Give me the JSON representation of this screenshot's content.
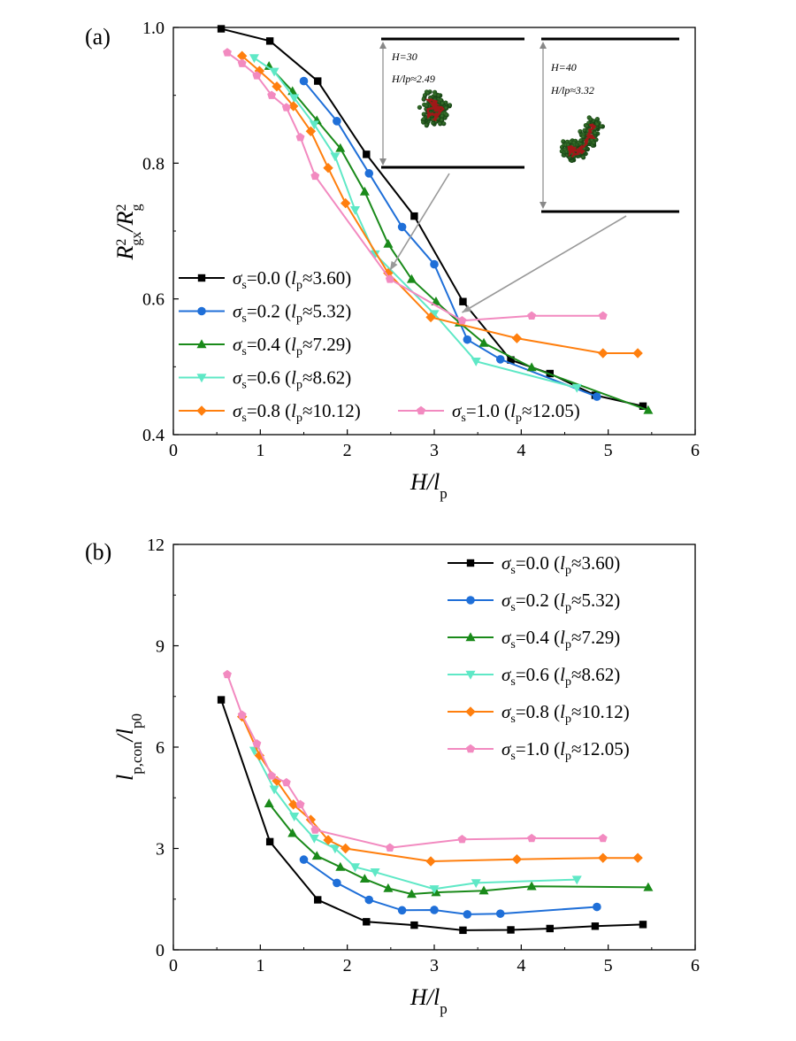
{
  "chart_data": [
    {
      "panel": "(a)",
      "type": "line",
      "xlabel": "H/lp",
      "ylabel": "R2gx/R2g",
      "xlim": [
        0,
        6
      ],
      "ylim": [
        0.4,
        1.0
      ],
      "xticks": [
        "0",
        "1",
        "2",
        "3",
        "4",
        "5",
        "6"
      ],
      "yticks": [
        "0.4",
        "0.6",
        "0.8",
        "1.0"
      ],
      "legend_position": "bottom-left",
      "series": [
        {
          "name": "σs=0.0 (lp≈3.60)",
          "sigma": "0.0",
          "lp": "3.60",
          "color": "#000000",
          "marker": "square",
          "x": [
            0.55,
            1.11,
            1.66,
            2.22,
            2.77,
            3.33,
            3.88,
            4.33,
            4.85,
            5.4
          ],
          "y": [
            0.998,
            0.98,
            0.921,
            0.813,
            0.722,
            0.596,
            0.51,
            0.49,
            0.458,
            0.442
          ]
        },
        {
          "name": "σs=0.2 (lp≈5.32)",
          "sigma": "0.2",
          "lp": "5.32",
          "color": "#1f6fd8",
          "marker": "circle",
          "x": [
            1.5,
            1.88,
            2.25,
            2.63,
            3.0,
            3.38,
            3.76,
            4.87
          ],
          "y": [
            0.921,
            0.862,
            0.785,
            0.706,
            0.651,
            0.54,
            0.511,
            0.456
          ]
        },
        {
          "name": "σs=0.4 (lp≈7.29)",
          "sigma": "0.4",
          "lp": "7.29",
          "color": "#1a8a1a",
          "marker": "triangle-up",
          "x": [
            1.1,
            1.37,
            1.65,
            1.92,
            2.2,
            2.47,
            2.74,
            3.02,
            3.29,
            3.57,
            4.12,
            5.46
          ],
          "y": [
            0.943,
            0.906,
            0.863,
            0.822,
            0.758,
            0.681,
            0.629,
            0.596,
            0.565,
            0.535,
            0.499,
            0.436
          ]
        },
        {
          "name": "σs=0.6 (lp≈8.62)",
          "sigma": "0.6",
          "lp": "8.62",
          "color": "#5fe8c6",
          "marker": "triangle-down",
          "x": [
            0.93,
            1.16,
            1.39,
            1.62,
            1.86,
            2.09,
            2.32,
            3.0,
            3.48,
            4.64
          ],
          "y": [
            0.955,
            0.935,
            0.896,
            0.857,
            0.81,
            0.731,
            0.666,
            0.578,
            0.508,
            0.469
          ]
        },
        {
          "name": "σs=0.8 (lp≈10.12)",
          "sigma": "0.8",
          "lp": "10.12",
          "color": "#ff7f0e",
          "marker": "diamond",
          "x": [
            0.79,
            0.99,
            1.19,
            1.38,
            1.58,
            1.78,
            1.98,
            2.47,
            2.96,
            3.95,
            4.94,
            5.34
          ],
          "y": [
            0.958,
            0.936,
            0.913,
            0.884,
            0.847,
            0.793,
            0.741,
            0.638,
            0.573,
            0.542,
            0.52,
            0.52
          ]
        },
        {
          "name": "σs=1.0 (lp≈12.05)",
          "sigma": "1.0",
          "lp": "12.05",
          "color": "#f28ac0",
          "marker": "pentagon",
          "x": [
            0.62,
            0.79,
            0.96,
            1.13,
            1.3,
            1.46,
            1.63,
            2.49,
            3.32,
            4.12,
            4.94
          ],
          "y": [
            0.963,
            0.947,
            0.929,
            0.9,
            0.882,
            0.838,
            0.781,
            0.629,
            0.568,
            0.575,
            0.575
          ]
        }
      ],
      "insets": [
        {
          "h_label": "H=30",
          "ratio_label": "H/lp≈2.49",
          "points_to_x": 2.49,
          "points_to_y": 0.642
        },
        {
          "h_label": "H=40",
          "ratio_label": "H/lp≈3.32",
          "points_to_x": 3.32,
          "points_to_y": 0.58
        }
      ]
    },
    {
      "panel": "(b)",
      "type": "line",
      "xlabel": "H/lp",
      "ylabel": "lp,con/lp0",
      "xlim": [
        0,
        6
      ],
      "ylim": [
        0,
        12
      ],
      "xticks": [
        "0",
        "1",
        "2",
        "3",
        "4",
        "5",
        "6"
      ],
      "yticks": [
        "0",
        "3",
        "6",
        "9",
        "12"
      ],
      "legend_position": "top-right",
      "series": [
        {
          "name": "σs=0.0 (lp≈3.60)",
          "sigma": "0.0",
          "lp": "3.60",
          "color": "#000000",
          "marker": "square",
          "x": [
            0.55,
            1.11,
            1.66,
            2.22,
            2.77,
            3.33,
            3.88,
            4.33,
            4.85,
            5.4
          ],
          "y": [
            7.4,
            3.2,
            1.48,
            0.83,
            0.73,
            0.58,
            0.59,
            0.63,
            0.7,
            0.75
          ]
        },
        {
          "name": "σs=0.2 (lp≈5.32)",
          "sigma": "0.2",
          "lp": "5.32",
          "color": "#1f6fd8",
          "marker": "circle",
          "x": [
            1.5,
            1.88,
            2.25,
            2.63,
            3.0,
            3.38,
            3.76,
            4.87
          ],
          "y": [
            2.67,
            1.98,
            1.48,
            1.17,
            1.18,
            1.05,
            1.07,
            1.27
          ]
        },
        {
          "name": "σs=0.4 (lp≈7.29)",
          "sigma": "0.4",
          "lp": "7.29",
          "color": "#1a8a1a",
          "marker": "triangle-up",
          "x": [
            1.1,
            1.37,
            1.65,
            1.92,
            2.2,
            2.47,
            2.74,
            3.02,
            3.57,
            4.12,
            5.46
          ],
          "y": [
            4.33,
            3.45,
            2.78,
            2.45,
            2.1,
            1.82,
            1.65,
            1.7,
            1.75,
            1.88,
            1.85
          ]
        },
        {
          "name": "σs=0.6 (lp≈8.62)",
          "sigma": "0.6",
          "lp": "8.62",
          "color": "#5fe8c6",
          "marker": "triangle-down",
          "x": [
            0.93,
            1.16,
            1.39,
            1.62,
            1.86,
            2.09,
            2.32,
            3.0,
            3.48,
            4.64
          ],
          "y": [
            5.9,
            4.75,
            3.95,
            3.3,
            3.0,
            2.45,
            2.3,
            1.8,
            1.98,
            2.08
          ]
        },
        {
          "name": "σs=0.8 (lp≈10.12)",
          "sigma": "0.8",
          "lp": "10.12",
          "color": "#ff7f0e",
          "marker": "diamond",
          "x": [
            0.79,
            0.99,
            1.19,
            1.38,
            1.58,
            1.78,
            1.98,
            2.96,
            3.95,
            4.94,
            5.34
          ],
          "y": [
            6.9,
            5.75,
            5.0,
            4.3,
            3.85,
            3.25,
            3.0,
            2.62,
            2.68,
            2.72,
            2.72
          ]
        },
        {
          "name": "σs=1.0 (lp≈12.05)",
          "sigma": "1.0",
          "lp": "12.05",
          "color": "#f28ac0",
          "marker": "pentagon",
          "x": [
            0.62,
            0.79,
            0.96,
            1.13,
            1.3,
            1.46,
            1.63,
            2.49,
            3.32,
            4.12,
            4.94
          ],
          "y": [
            8.15,
            6.95,
            6.1,
            5.15,
            4.95,
            4.3,
            3.55,
            3.02,
            3.27,
            3.3,
            3.3
          ]
        }
      ]
    }
  ]
}
